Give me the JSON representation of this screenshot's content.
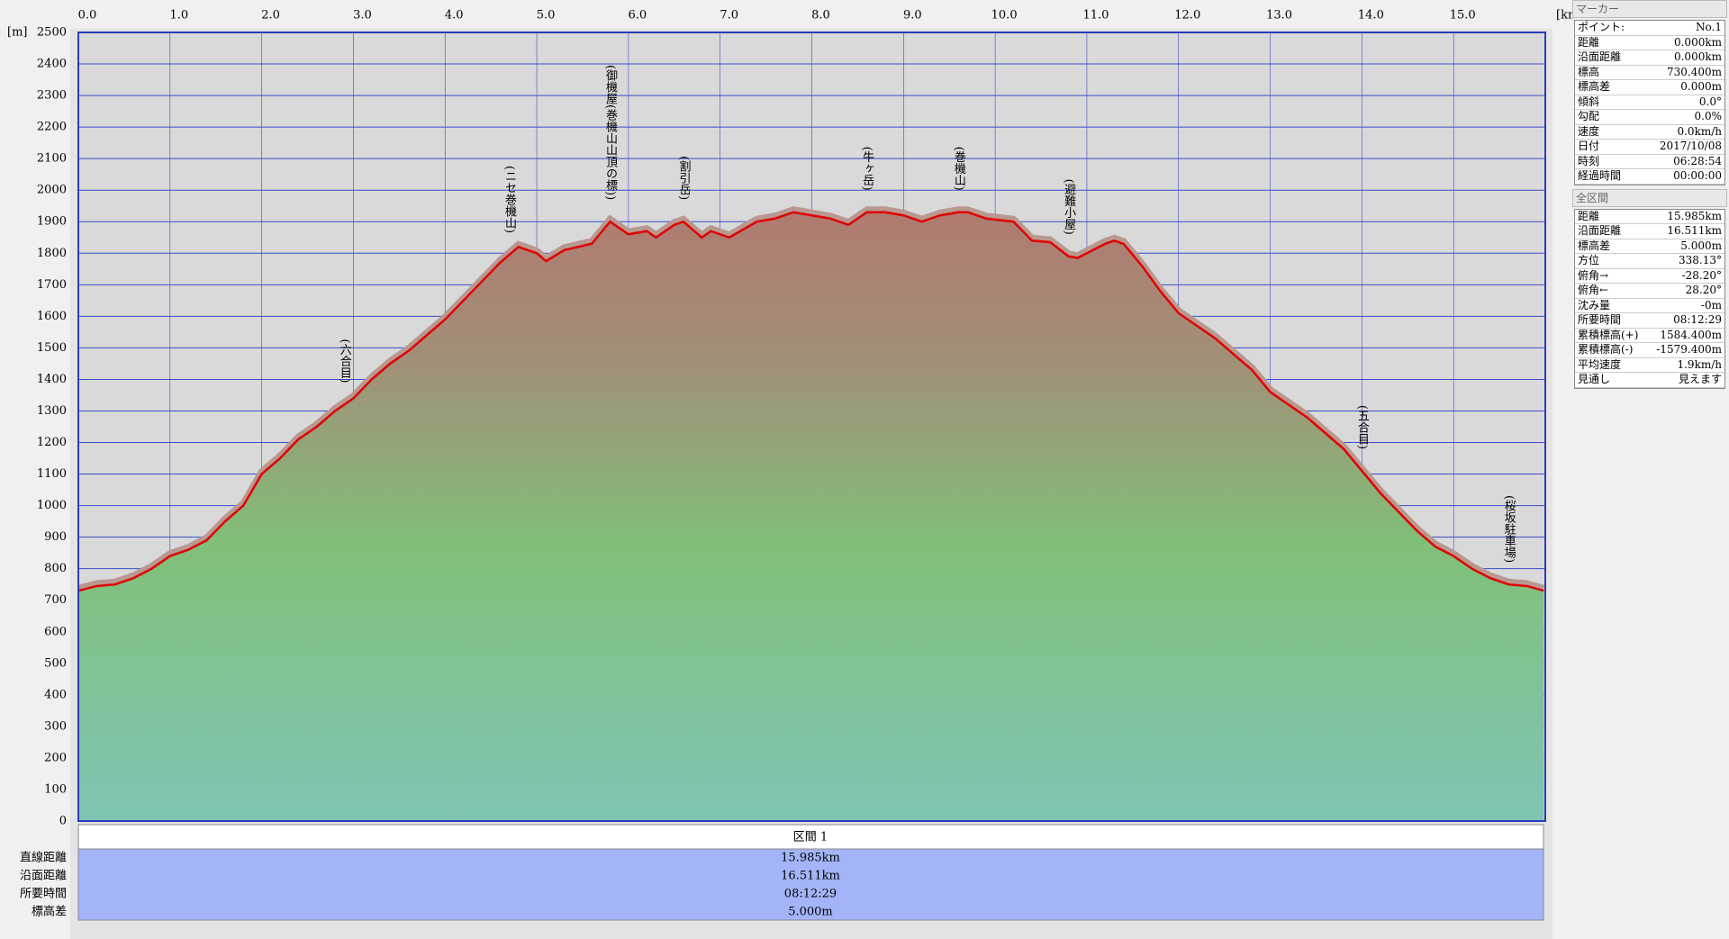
{
  "chart_data": {
    "type": "line",
    "x_unit": "[km]",
    "y_unit": "[m]",
    "x": [
      0,
      0.2,
      0.4,
      0.6,
      0.8,
      1.0,
      1.2,
      1.4,
      1.6,
      1.8,
      2.0,
      2.2,
      2.4,
      2.6,
      2.8,
      3.0,
      3.2,
      3.4,
      3.6,
      3.8,
      4.0,
      4.2,
      4.4,
      4.6,
      4.8,
      5.0,
      5.1,
      5.3,
      5.6,
      5.8,
      6.0,
      6.2,
      6.3,
      6.5,
      6.6,
      6.8,
      6.9,
      7.1,
      7.4,
      7.6,
      7.8,
      8.0,
      8.2,
      8.4,
      8.6,
      8.8,
      9.0,
      9.2,
      9.4,
      9.6,
      9.7,
      9.9,
      10.2,
      10.4,
      10.6,
      10.8,
      10.9,
      11.0,
      11.2,
      11.3,
      11.4,
      11.6,
      11.8,
      12.0,
      12.2,
      12.4,
      12.6,
      12.8,
      13.0,
      13.2,
      13.4,
      13.6,
      13.8,
      14.0,
      14.2,
      14.4,
      14.6,
      14.8,
      15.0,
      15.2,
      15.4,
      15.6,
      15.8,
      15.985
    ],
    "values": [
      730,
      745,
      750,
      770,
      800,
      840,
      860,
      890,
      950,
      1000,
      1100,
      1150,
      1210,
      1250,
      1300,
      1340,
      1400,
      1450,
      1490,
      1540,
      1590,
      1650,
      1710,
      1770,
      1820,
      1800,
      1775,
      1810,
      1830,
      1900,
      1860,
      1870,
      1850,
      1890,
      1900,
      1850,
      1870,
      1850,
      1900,
      1910,
      1930,
      1920,
      1910,
      1890,
      1930,
      1930,
      1920,
      1900,
      1920,
      1930,
      1930,
      1910,
      1900,
      1840,
      1835,
      1790,
      1785,
      1800,
      1830,
      1840,
      1830,
      1760,
      1680,
      1610,
      1570,
      1530,
      1480,
      1430,
      1360,
      1320,
      1280,
      1230,
      1180,
      1110,
      1040,
      980,
      920,
      870,
      840,
      800,
      770,
      750,
      745,
      730
    ],
    "color": "#e00000",
    "xlim": [
      0,
      16
    ],
    "ylim": [
      0,
      2500
    ],
    "xticks": [
      {
        "value": 0,
        "label": "0.0"
      },
      {
        "value": 1,
        "label": "1.0"
      },
      {
        "value": 2,
        "label": "2.0"
      },
      {
        "value": 3,
        "label": "3.0"
      },
      {
        "value": 4,
        "label": "4.0"
      },
      {
        "value": 5,
        "label": "5.0"
      },
      {
        "value": 6,
        "label": "6.0"
      },
      {
        "value": 7,
        "label": "7.0"
      },
      {
        "value": 8,
        "label": "8.0"
      },
      {
        "value": 9,
        "label": "9.0"
      },
      {
        "value": 10,
        "label": "10.0"
      },
      {
        "value": 11,
        "label": "11.0"
      },
      {
        "value": 12,
        "label": "12.0"
      },
      {
        "value": 13,
        "label": "13.0"
      },
      {
        "value": 14,
        "label": "14.0"
      },
      {
        "value": 15,
        "label": "15.0"
      }
    ],
    "yticks": [
      0,
      100,
      200,
      300,
      400,
      500,
      600,
      700,
      800,
      900,
      1000,
      1100,
      1200,
      1300,
      1400,
      1500,
      1600,
      1700,
      1800,
      1900,
      2000,
      2100,
      2200,
      2300,
      2400,
      2500
    ],
    "grid": true,
    "annotations": [
      {
        "x": 2.9,
        "text": "(六合目)"
      },
      {
        "x": 4.7,
        "text": "(ニセ巻機山)"
      },
      {
        "x": 5.8,
        "text": "(御機屋(巻機山山頂の標))"
      },
      {
        "x": 6.6,
        "text": "(割引岳)"
      },
      {
        "x": 8.6,
        "text": "(牛ヶ岳)"
      },
      {
        "x": 9.6,
        "text": "(巻機山)"
      },
      {
        "x": 10.8,
        "text": "(避難小屋)"
      },
      {
        "x": 14.0,
        "text": "(五合目)"
      },
      {
        "x": 15.6,
        "text": "(桜坂駐車場)"
      }
    ]
  },
  "section_table": {
    "header": "区間 1",
    "rows": [
      [
        "直線距離",
        "15.985km"
      ],
      [
        "沿面距離",
        "16.511km"
      ],
      [
        "所要時間",
        "08:12:29"
      ],
      [
        "標高差",
        "5.000m"
      ]
    ]
  },
  "marker_panel": {
    "title": "マーカー",
    "rows": [
      [
        "ポイント:",
        "No.1"
      ],
      [
        "距離",
        "0.000km"
      ],
      [
        "沿面距離",
        "0.000km"
      ],
      [
        "標高",
        "730.400m"
      ],
      [
        "標高差",
        "0.000m"
      ],
      [
        "傾斜",
        "0.0°"
      ],
      [
        "勾配",
        "0.0%"
      ],
      [
        "速度",
        "0.0km/h"
      ],
      [
        "日付",
        "2017/10/08"
      ],
      [
        "時刻",
        "06:28:54"
      ],
      [
        "経過時間",
        "00:00:00"
      ]
    ]
  },
  "total_panel": {
    "title": "全区間",
    "rows": [
      [
        "距離",
        "15.985km"
      ],
      [
        "沿面距離",
        "16.511km"
      ],
      [
        "標高差",
        "5.000m"
      ],
      [
        "方位",
        "338.13°"
      ],
      [
        "俯角→",
        "-28.20°"
      ],
      [
        "俯角←",
        "28.20°"
      ],
      [
        "沈み量",
        "-0m"
      ],
      [
        "所要時間",
        "08:12:29"
      ],
      [
        "累積標高(+)",
        "1584.400m"
      ],
      [
        "累積標高(-)",
        "-1579.400m"
      ],
      [
        "平均速度",
        "1.9km/h"
      ],
      [
        "見通し",
        "見えます"
      ]
    ]
  }
}
